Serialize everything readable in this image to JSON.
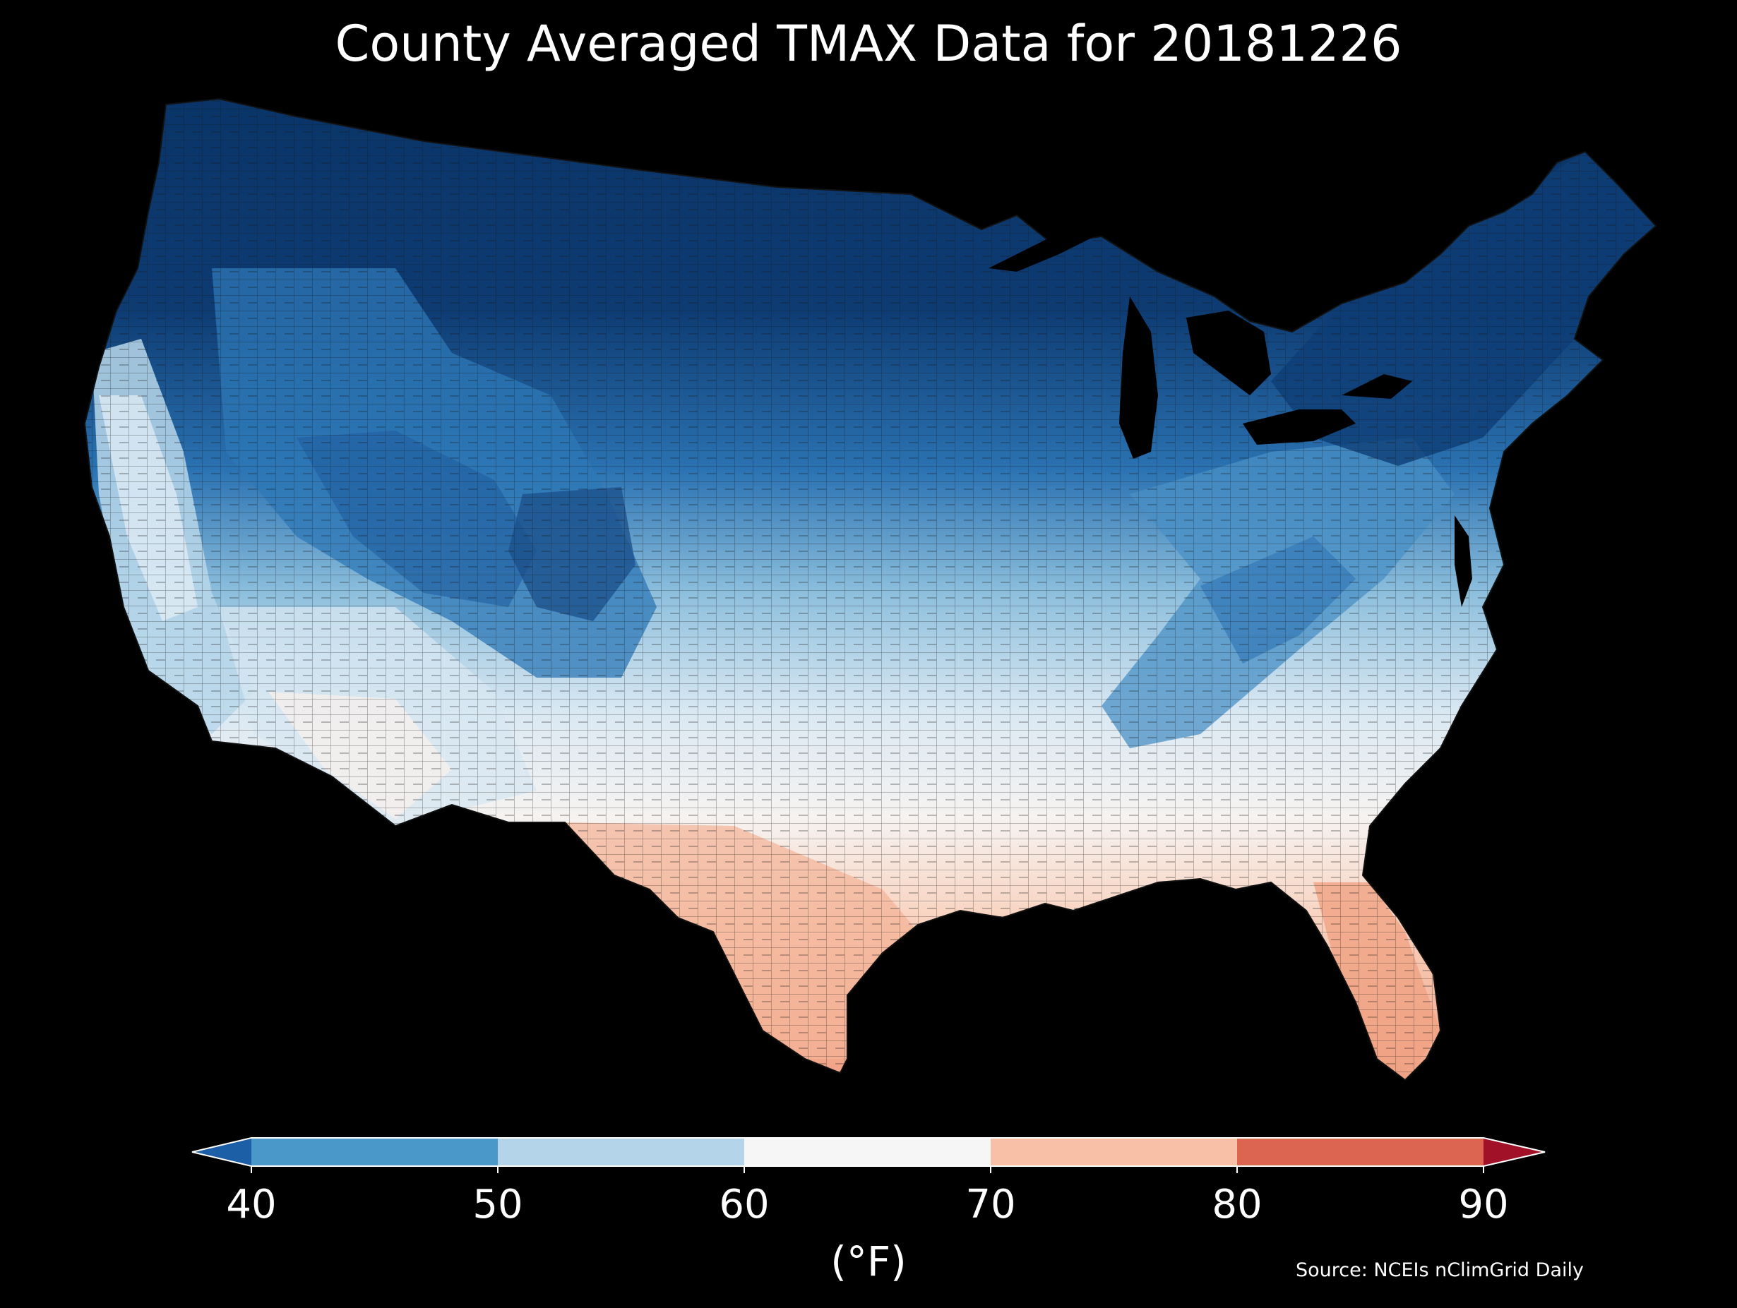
{
  "title": "County Averaged TMAX Data for 20181226",
  "colorbar": {
    "unit": "(°F)",
    "ticks": [
      "40",
      "50",
      "60",
      "70",
      "80",
      "90"
    ],
    "range": [
      40,
      90
    ],
    "extend": "both",
    "bins": [
      {
        "from": 40,
        "to": 50,
        "color": "#4a98c9"
      },
      {
        "from": 50,
        "to": 60,
        "color": "#b4d5e9"
      },
      {
        "from": 60,
        "to": 70,
        "color": "#f6f6f6"
      },
      {
        "from": 70,
        "to": 80,
        "color": "#f8c0a6"
      },
      {
        "from": 80,
        "to": 90,
        "color": "#db6550"
      }
    ],
    "under_color": "#1d5fa6",
    "over_color": "#a11228"
  },
  "source": "Source: NCEIs nClimGrid Daily",
  "map": {
    "region": "contiguous-us-counties",
    "background": "#000000",
    "water_color": "#000000",
    "county_border_color": "#1a1a1a"
  }
}
